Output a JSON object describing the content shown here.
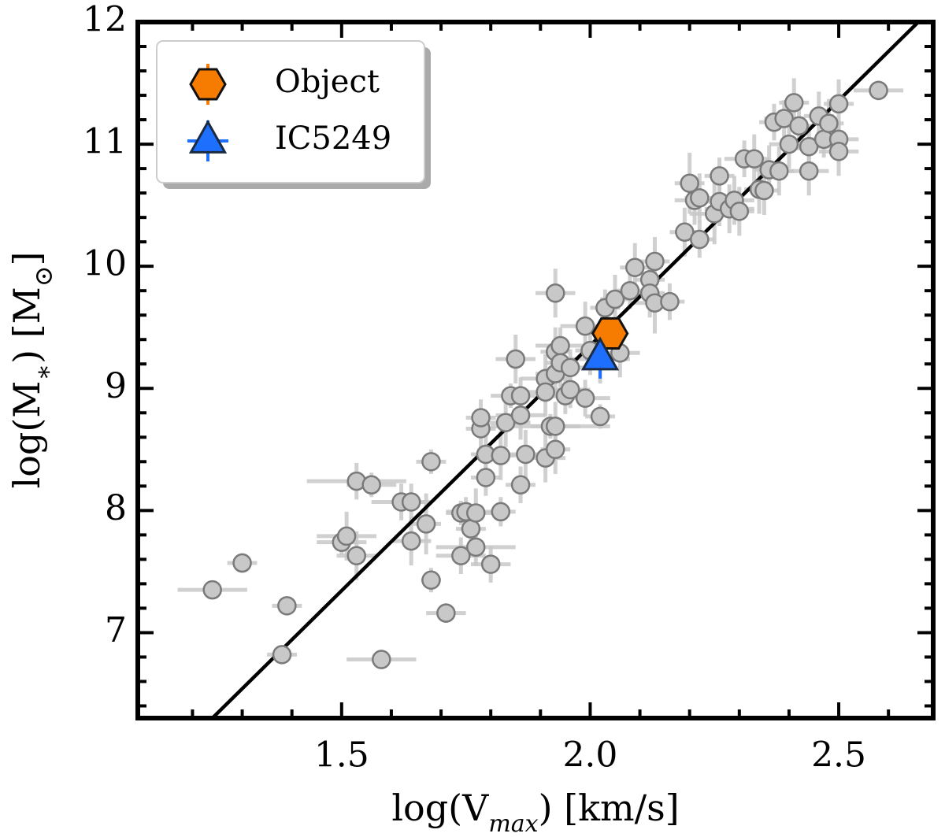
{
  "chart_data": {
    "type": "scatter",
    "xlabel": [
      "log(V",
      "max",
      ") [km/s]"
    ],
    "ylabel": [
      "log(M",
      "∗",
      ") [M",
      "⊙",
      "]"
    ],
    "xlim": [
      1.09,
      2.69
    ],
    "ylim": [
      6.3,
      12
    ],
    "xticks": [
      {
        "value": 1.5,
        "label": "1.5"
      },
      {
        "value": 2.0,
        "label": "2.0"
      },
      {
        "value": 2.5,
        "label": "2.5"
      }
    ],
    "xticks_minor": [
      1.2,
      1.3,
      1.4,
      1.6,
      1.7,
      1.8,
      1.9,
      2.1,
      2.2,
      2.3,
      2.4,
      2.6
    ],
    "yticks": [
      7,
      8,
      9,
      10,
      11,
      12
    ],
    "yticks_minor": [
      6.4,
      6.6,
      6.8,
      7.2,
      7.4,
      7.6,
      7.8,
      8.2,
      8.4,
      8.6,
      8.8,
      9.2,
      9.4,
      9.6,
      9.8,
      10.2,
      10.4,
      10.6,
      10.8,
      11.2,
      11.4,
      11.6,
      11.8
    ],
    "legend": "upper left",
    "fit_line": {
      "x": [
        1.24,
        2.66
      ],
      "values": [
        6.3,
        12
      ],
      "color": "#000000"
    },
    "series": [
      {
        "color": "#c8c8c8",
        "marker": "circle",
        "x": [
          1.24,
          1.3,
          1.38,
          1.39,
          1.5,
          1.51,
          1.53,
          1.53,
          1.56,
          1.58,
          1.62,
          1.64,
          1.64,
          1.67,
          1.68,
          1.68,
          1.74,
          1.74,
          1.75,
          1.76,
          1.77,
          1.77,
          1.8,
          1.71,
          1.78,
          1.78,
          1.79,
          1.79,
          1.82,
          1.82,
          1.83,
          1.84,
          1.86,
          1.86,
          1.86,
          1.87,
          1.85,
          1.91,
          1.91,
          1.92,
          1.93,
          1.91,
          1.93,
          1.93,
          1.93,
          1.93,
          1.94,
          1.94,
          1.95,
          1.96,
          1.96,
          1.99,
          1.99,
          2.0,
          2.02,
          2.02,
          2.03,
          2.05,
          2.06,
          2.08,
          2.09,
          2.12,
          2.12,
          2.13,
          2.13,
          2.16,
          2.19,
          2.2,
          2.21,
          2.22,
          2.22,
          2.25,
          2.26,
          2.26,
          2.28,
          2.29,
          2.3,
          2.31,
          2.33,
          2.34,
          2.35,
          2.36,
          2.38,
          2.37,
          2.39,
          2.4,
          2.41,
          2.42,
          2.44,
          2.44,
          2.46,
          2.47,
          2.48,
          2.5,
          2.5,
          2.5,
          2.58
        ],
        "values": [
          7.35,
          7.57,
          6.82,
          7.22,
          7.74,
          7.79,
          7.63,
          8.24,
          8.21,
          6.78,
          8.07,
          7.75,
          8.07,
          7.89,
          7.43,
          8.4,
          7.98,
          7.63,
          7.99,
          7.85,
          7.7,
          7.98,
          7.56,
          7.16,
          8.67,
          8.76,
          8.46,
          8.27,
          7.99,
          8.45,
          8.72,
          8.94,
          8.78,
          8.94,
          8.21,
          8.46,
          9.24,
          8.43,
          9.08,
          8.69,
          9.78,
          8.97,
          9.3,
          8.5,
          8.69,
          9.12,
          9.35,
          9.21,
          8.94,
          9.17,
          8.99,
          8.92,
          9.51,
          9.31,
          8.77,
          9.24,
          9.66,
          9.73,
          9.29,
          9.8,
          9.99,
          9.89,
          9.78,
          10.04,
          9.7,
          9.71,
          10.28,
          10.68,
          10.54,
          10.22,
          10.56,
          10.43,
          10.74,
          10.53,
          10.47,
          10.54,
          10.45,
          10.88,
          10.88,
          10.63,
          10.62,
          10.79,
          10.78,
          11.18,
          11.21,
          11.0,
          11.34,
          11.15,
          10.78,
          10.98,
          11.23,
          11.04,
          11.17,
          11.04,
          11.33,
          10.94,
          11.44
        ],
        "xerr": [
          0.07,
          0.03,
          0.03,
          0.03,
          0.05,
          0.06,
          0.04,
          0.1,
          0.05,
          0.07,
          0.06,
          0.04,
          0.03,
          0.03,
          0.02,
          0.03,
          0.03,
          0.05,
          0.04,
          0.03,
          0.08,
          0.04,
          0.04,
          0.04,
          0.03,
          0.03,
          0.03,
          0.03,
          0.03,
          0.03,
          0.05,
          0.04,
          0.05,
          0.04,
          0.03,
          0.06,
          0.04,
          0.04,
          0.05,
          0.12,
          0.04,
          0.04,
          0.03,
          0.03,
          0.05,
          0.04,
          0.05,
          0.03,
          0.04,
          0.03,
          0.04,
          0.05,
          0.05,
          0.03,
          0.03,
          0.06,
          0.03,
          0.03,
          0.04,
          0.03,
          0.03,
          0.03,
          0.03,
          0.03,
          0.04,
          0.03,
          0.03,
          0.03,
          0.04,
          0.03,
          0.03,
          0.05,
          0.03,
          0.04,
          0.05,
          0.04,
          0.03,
          0.04,
          0.03,
          0.03,
          0.03,
          0.03,
          0.03,
          0.03,
          0.04,
          0.04,
          0.03,
          0.03,
          0.04,
          0.04,
          0.03,
          0.03,
          0.03,
          0.04,
          0.03,
          0.04,
          0.05
        ],
        "yerr": [
          0.07,
          0.08,
          0.06,
          0.07,
          0.1,
          0.2,
          0.2,
          0.15,
          0.1,
          0.08,
          0.15,
          0.2,
          0.15,
          0.25,
          0.1,
          0.1,
          0.1,
          0.15,
          0.12,
          0.15,
          0.15,
          0.2,
          0.15,
          0.08,
          0.15,
          0.15,
          0.2,
          0.15,
          0.12,
          0.2,
          0.2,
          0.1,
          0.2,
          0.15,
          0.15,
          0.2,
          0.2,
          0.2,
          0.2,
          0.1,
          0.2,
          0.2,
          0.2,
          0.2,
          0.2,
          0.2,
          0.15,
          0.2,
          0.15,
          0.15,
          0.15,
          0.15,
          0.2,
          0.2,
          0.1,
          0.2,
          0.15,
          0.2,
          0.2,
          0.15,
          0.2,
          0.15,
          0.2,
          0.2,
          0.25,
          0.15,
          0.2,
          0.25,
          0.2,
          0.15,
          0.2,
          0.25,
          0.15,
          0.2,
          0.2,
          0.2,
          0.2,
          0.15,
          0.2,
          0.2,
          0.2,
          0.2,
          0.2,
          0.15,
          0.15,
          0.2,
          0.2,
          0.2,
          0.2,
          0.15,
          0.2,
          0.15,
          0.2,
          0.15,
          0.2,
          0.2,
          0.08
        ]
      },
      {
        "name": "Object",
        "color": "#f57c00",
        "marker": "hexagon",
        "x": [
          2.04
        ],
        "values": [
          9.45
        ],
        "xerr": [
          0.0
        ],
        "yerr": [
          0.1
        ]
      },
      {
        "name": "IC5249",
        "color": "#1f6fff",
        "marker": "triangle",
        "x": [
          2.02
        ],
        "values": [
          9.25
        ],
        "xerr": [
          0.03
        ],
        "yerr": [
          0.17
        ]
      }
    ]
  }
}
